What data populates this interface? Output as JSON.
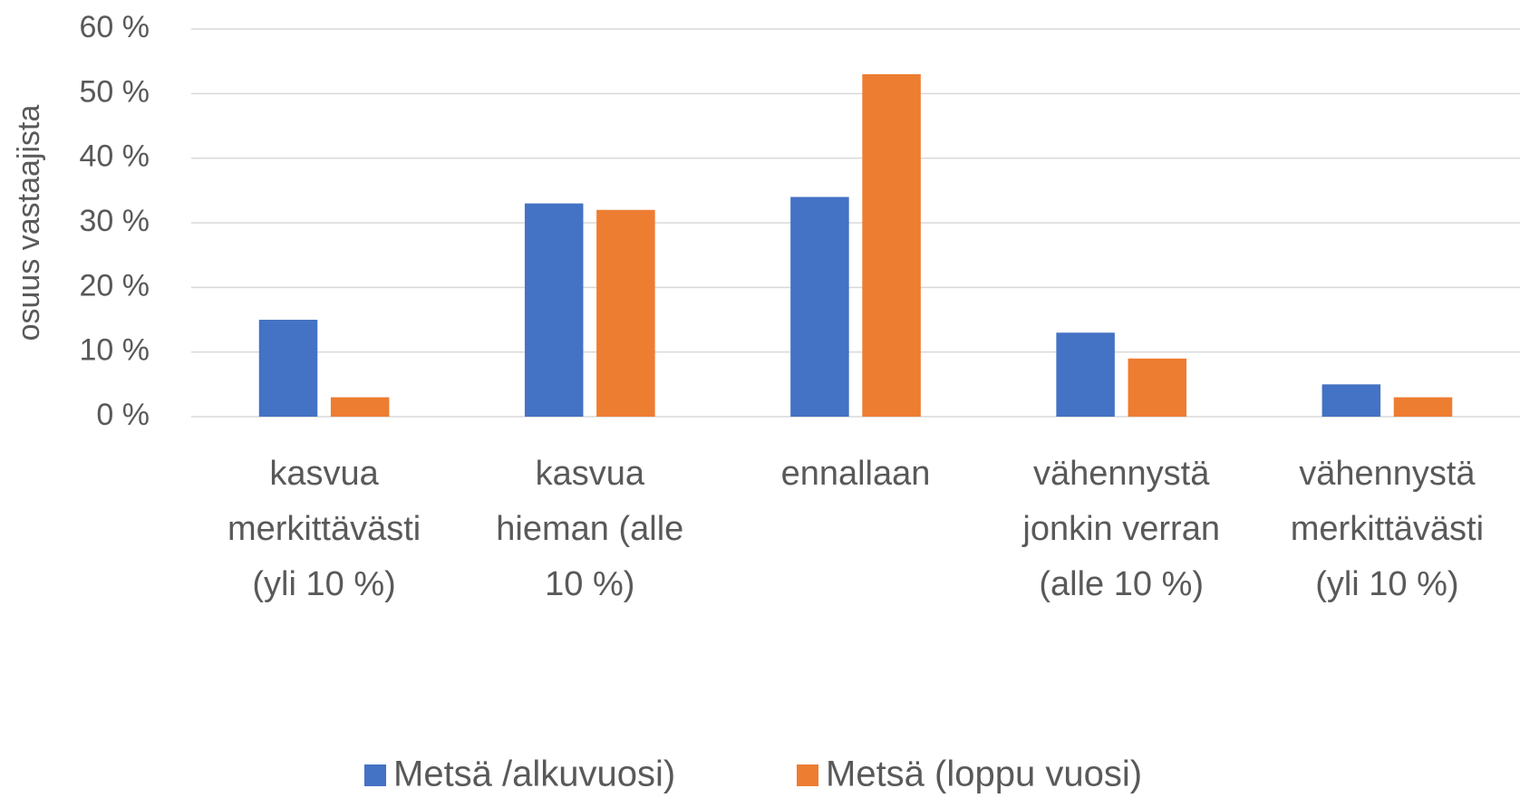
{
  "chart_data": {
    "type": "bar",
    "y_axis_label": "osuus vastaajista",
    "categories": [
      [
        "kasvua",
        "merkittävästi",
        "(yli 10 %)"
      ],
      [
        "kasvua",
        "hieman (alle",
        "10 %)"
      ],
      [
        "ennallaan"
      ],
      [
        "vähennystä",
        "jonkin verran",
        "(alle 10 %)"
      ],
      [
        "vähennystä",
        "merkittävästi",
        "(yli 10 %)"
      ]
    ],
    "series": [
      {
        "name": "Metsä /alkuvuosi)",
        "color": "#4472c4",
        "values": [
          15,
          33,
          34,
          13,
          5
        ]
      },
      {
        "name": "Metsä (loppu vuosi)",
        "color": "#ed7d31",
        "values": [
          3,
          32,
          53,
          9,
          3
        ]
      }
    ],
    "ylim": [
      0,
      60
    ],
    "yticks": [
      {
        "value": 0,
        "label": "0 %"
      },
      {
        "value": 10,
        "label": "10 %"
      },
      {
        "value": 20,
        "label": "20 %"
      },
      {
        "value": 30,
        "label": "30 %"
      },
      {
        "value": 40,
        "label": "40 %"
      },
      {
        "value": 50,
        "label": "50 %"
      },
      {
        "value": 60,
        "label": "60 %"
      }
    ],
    "grid": true,
    "legend": "bottom"
  }
}
